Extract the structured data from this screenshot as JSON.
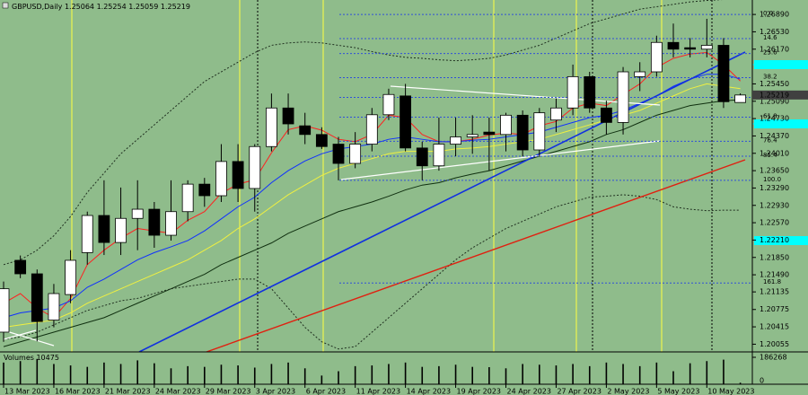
{
  "chart_data": {
    "type": "candlestick",
    "symbol": "GBPUSD,Daily",
    "categories": [
      "13 Mar 2023",
      null,
      null,
      "16 Mar 2023",
      null,
      null,
      "21 Mar 2023",
      null,
      null,
      "24 Mar 2023",
      null,
      null,
      "29 Mar 2023",
      null,
      null,
      "3 Apr 2023",
      null,
      null,
      "6 Apr 2023",
      null,
      null,
      "11 Apr 2023",
      null,
      null,
      "14 Apr 2023",
      null,
      null,
      "19 Apr 2023",
      null,
      null,
      "24 Apr 2023",
      null,
      null,
      "27 Apr 2023",
      null,
      null,
      "2 May 2023",
      null,
      null,
      "5 May 2023",
      null,
      null,
      "10 May 2023",
      null,
      null
    ],
    "open": [
      1.203,
      1.2179,
      1.2151,
      1.2055,
      1.2108,
      1.2195,
      1.2272,
      1.2216,
      1.2266,
      1.2285,
      1.2231,
      1.228,
      1.2337,
      1.2313,
      1.2384,
      1.2328,
      1.2415,
      1.2495,
      1.2458,
      1.244,
      1.242,
      1.238,
      1.242,
      1.2481,
      1.252,
      1.2412,
      1.2375,
      1.242,
      1.2435,
      1.2445,
      1.244,
      1.248,
      1.2408,
      1.247,
      1.2495,
      1.256,
      1.2495,
      1.2465,
      1.256,
      1.257,
      1.2631,
      1.262,
      1.2617,
      1.2625,
      1.25064
    ],
    "high": [
      1.2135,
      1.2189,
      1.216,
      1.213,
      1.22,
      1.228,
      1.2345,
      1.233,
      1.2345,
      1.23,
      1.2345,
      1.2345,
      1.235,
      1.242,
      1.242,
      1.242,
      1.2525,
      1.2525,
      1.2485,
      1.2455,
      1.2435,
      1.2445,
      1.2495,
      1.2535,
      1.2545,
      1.2425,
      1.2475,
      1.2475,
      1.248,
      1.2475,
      1.2485,
      1.249,
      1.2495,
      1.2515,
      1.2585,
      1.257,
      1.251,
      1.258,
      1.259,
      1.2645,
      1.267,
      1.264,
      1.268,
      1.264,
      1.25254
    ],
    "low": [
      1.201,
      1.2142,
      1.2011,
      1.204,
      1.209,
      1.217,
      1.219,
      1.219,
      1.22,
      1.2205,
      1.222,
      1.226,
      1.229,
      1.23,
      1.23,
      1.228,
      1.2405,
      1.244,
      1.242,
      1.241,
      1.2345,
      1.237,
      1.2405,
      1.247,
      1.2405,
      1.2345,
      1.2365,
      1.2395,
      1.24,
      1.2365,
      1.2405,
      1.2395,
      1.2395,
      1.2445,
      1.248,
      1.2485,
      1.244,
      1.244,
      1.253,
      1.256,
      1.26,
      1.26,
      1.26,
      1.2495,
      1.25059
    ],
    "close": [
      1.212,
      1.2151,
      1.2052,
      1.211,
      1.2179,
      1.2272,
      1.2216,
      1.2266,
      1.2285,
      1.2231,
      1.228,
      1.2337,
      1.2313,
      1.2384,
      1.2328,
      1.2415,
      1.2495,
      1.2462,
      1.244,
      1.2415,
      1.238,
      1.242,
      1.2481,
      1.2523,
      1.2412,
      1.2375,
      1.242,
      1.2435,
      1.244,
      1.244,
      1.248,
      1.2408,
      1.2485,
      1.2495,
      1.256,
      1.2495,
      1.2465,
      1.257,
      1.257,
      1.2631,
      1.2617,
      1.2617,
      1.2625,
      1.2508,
      1.25219
    ],
    "ylim": [
      1.1989,
      1.2719
    ],
    "yticks": [
      {
        "value": 1.2689,
        "label": "1.26890"
      },
      {
        "value": 1.2653,
        "label": "1.26530"
      },
      {
        "value": 1.2617,
        "label": "1.26170"
      },
      {
        "value": 1.2545,
        "label": "1.25450"
      },
      {
        "value": 1.2509,
        "label": "1.25090"
      },
      {
        "value": 1.2473,
        "label": "1.24730"
      },
      {
        "value": 1.2437,
        "label": "1.24370"
      },
      {
        "value": 1.2401,
        "label": "1.24010"
      },
      {
        "value": 1.2365,
        "label": "1.23650"
      },
      {
        "value": 1.2329,
        "label": "1.23290"
      },
      {
        "value": 1.2293,
        "label": "1.22930"
      },
      {
        "value": 1.2257,
        "label": "1.22570"
      },
      {
        "value": 1.2221,
        "label": "1.22210"
      },
      {
        "value": 1.2185,
        "label": "1.21850"
      },
      {
        "value": 1.2149,
        "label": "1.21490"
      },
      {
        "value": 1.21135,
        "label": "1.21135"
      },
      {
        "value": 1.2077,
        "label": "1.20775"
      },
      {
        "value": 1.2041,
        "label": "1.20415"
      },
      {
        "value": 1.2005,
        "label": "1.20055"
      }
    ],
    "fib_levels": [
      {
        "label": "0.0",
        "price": 1.2689
      },
      {
        "label": "14.6",
        "price": 1.2639
      },
      {
        "label": "23.6",
        "price": 1.2608
      },
      {
        "label": "38.2",
        "price": 1.2558
      },
      {
        "label": "50.0",
        "price": 1.2517
      },
      {
        "label": "61.8",
        "price": 1.2476
      },
      {
        "label": "76.4",
        "price": 1.2426
      },
      {
        "label": "85.4",
        "price": 1.2395
      },
      {
        "label": "100.0",
        "price": 1.2345
      },
      {
        "label": "161.8",
        "price": 1.2132
      }
    ],
    "fib_color": "#3050d8",
    "indicators": [
      {
        "color": "#ff2020",
        "style": "solid",
        "values": [
          1.209,
          1.211,
          1.208,
          1.206,
          1.21,
          1.217,
          1.22,
          1.2225,
          1.2245,
          1.224,
          1.2235,
          1.2262,
          1.228,
          1.2318,
          1.2337,
          1.2346,
          1.2402,
          1.245,
          1.2458,
          1.2449,
          1.243,
          1.2425,
          1.244,
          1.248,
          1.2475,
          1.244,
          1.2425,
          1.2425,
          1.243,
          1.2439,
          1.2443,
          1.244,
          1.2458,
          1.2467,
          1.2495,
          1.2505,
          1.25,
          1.2523,
          1.2545,
          1.2579,
          1.2598,
          1.2607,
          1.261,
          1.2585,
          1.2551
        ]
      },
      {
        "color": "#1030ff",
        "style": "solid",
        "values": [
          1.206,
          1.207,
          1.2075,
          1.208,
          1.2095,
          1.2123,
          1.214,
          1.216,
          1.218,
          1.2195,
          1.2207,
          1.222,
          1.224,
          1.2265,
          1.229,
          1.231,
          1.234,
          1.2365,
          1.2385,
          1.24,
          1.241,
          1.2415,
          1.242,
          1.243,
          1.2435,
          1.243,
          1.2425,
          1.2425,
          1.2428,
          1.243,
          1.2435,
          1.244,
          1.2445,
          1.2455,
          1.2465,
          1.2475,
          1.248,
          1.249,
          1.2505,
          1.252,
          1.254,
          1.2555,
          1.2565,
          1.2565,
          1.2555
        ]
      },
      {
        "color": "#f0f040",
        "style": "solid",
        "values": [
          1.204,
          1.2045,
          1.205,
          1.2055,
          1.207,
          1.209,
          1.2105,
          1.212,
          1.2135,
          1.215,
          1.2165,
          1.218,
          1.22,
          1.222,
          1.2245,
          1.2265,
          1.229,
          1.2315,
          1.2335,
          1.2355,
          1.237,
          1.238,
          1.239,
          1.24,
          1.2405,
          1.2405,
          1.2405,
          1.241,
          1.2412,
          1.2415,
          1.242,
          1.2425,
          1.243,
          1.244,
          1.245,
          1.246,
          1.247,
          1.248,
          1.249,
          1.2505,
          1.252,
          1.2535,
          1.2545,
          1.254,
          1.2535
        ]
      },
      {
        "color": "#103010",
        "style": "solid",
        "values": [
          1.2,
          1.201,
          1.202,
          1.203,
          1.204,
          1.205,
          1.206,
          1.2075,
          1.209,
          1.2105,
          1.212,
          1.2135,
          1.215,
          1.217,
          1.2185,
          1.22,
          1.2215,
          1.2235,
          1.225,
          1.2265,
          1.228,
          1.229,
          1.23,
          1.2312,
          1.2325,
          1.2335,
          1.234,
          1.235,
          1.2358,
          1.2365,
          1.2375,
          1.2385,
          1.2395,
          1.2405,
          1.2415,
          1.2425,
          1.244,
          1.245,
          1.2465,
          1.248,
          1.249,
          1.25,
          1.2505,
          1.251,
          1.2512
        ]
      },
      {
        "color": "#203020",
        "style": "dashed",
        "values": [
          1.217,
          1.218,
          1.22,
          1.223,
          1.227,
          1.232,
          1.236,
          1.24,
          1.243,
          1.246,
          1.249,
          1.252,
          1.255,
          1.257,
          1.259,
          1.261,
          1.2625,
          1.263,
          1.2632,
          1.263,
          1.2625,
          1.262,
          1.2612,
          1.2605,
          1.26,
          1.2598,
          1.2595,
          1.2593,
          1.2595,
          1.2598,
          1.2605,
          1.2615,
          1.2625,
          1.264,
          1.2655,
          1.267,
          1.268,
          1.269,
          1.27,
          1.2705,
          1.271,
          1.2715,
          1.2718,
          1.272,
          1.2725
        ]
      },
      {
        "color": "#203020",
        "style": "dashed",
        "values": [
          1.2015,
          1.202,
          1.203,
          1.2045,
          1.206,
          1.2075,
          1.2085,
          1.2095,
          1.21,
          1.211,
          1.212,
          1.2125,
          1.213,
          1.2135,
          1.214,
          1.214,
          1.212,
          1.208,
          1.204,
          1.201,
          1.1995,
          1.2,
          1.203,
          1.206,
          1.209,
          1.212,
          1.215,
          1.218,
          1.2205,
          1.2225,
          1.2245,
          1.226,
          1.2275,
          1.229,
          1.23,
          1.231,
          1.2312,
          1.2315,
          1.2312,
          1.2305,
          1.229,
          1.2285,
          1.2282,
          1.2283,
          1.2283
        ]
      }
    ],
    "volume_title": "Volumes",
    "volumes": [
      150000,
      160000,
      175000,
      140000,
      130000,
      120000,
      150000,
      140000,
      165000,
      145000,
      110000,
      125000,
      120000,
      135000,
      130000,
      115000,
      140000,
      150000,
      110000,
      60000,
      90000,
      125000,
      130000,
      140000,
      150000,
      120000,
      125000,
      135000,
      120000,
      118000,
      110000,
      140000,
      135000,
      130000,
      140000,
      125000,
      150000,
      140000,
      125000,
      150000,
      90000,
      145000,
      160000,
      170000,
      10475
    ],
    "volume_ylim": [
      0,
      186268
    ],
    "volume_yticks": [
      0,
      186268
    ]
  }
}
